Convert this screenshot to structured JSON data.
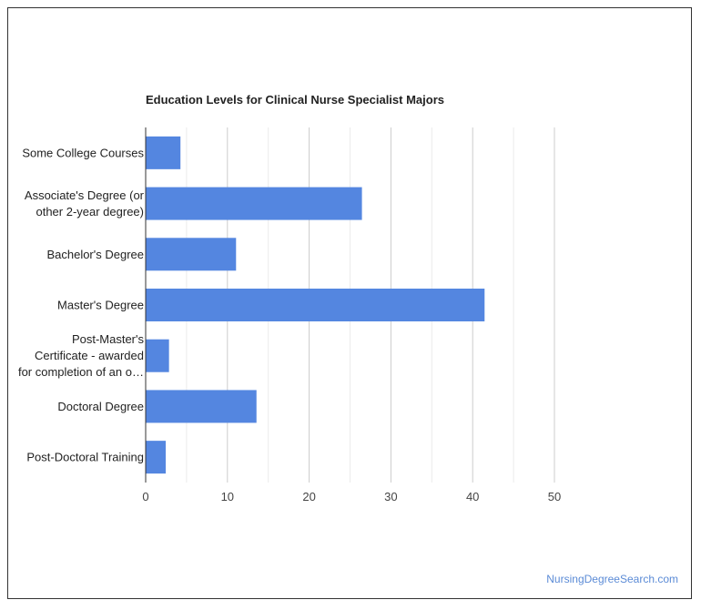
{
  "chart_data": {
    "type": "bar",
    "orientation": "horizontal",
    "title": "Education Levels for Clinical Nurse Specialist Majors",
    "categories": [
      [
        "Some College Courses"
      ],
      [
        "Associate's Degree (or",
        "other 2-year degree)"
      ],
      [
        "Bachelor's Degree"
      ],
      [
        "Master's Degree"
      ],
      [
        "Post-Master's",
        "Certificate - awarded",
        "for completion of an o…"
      ],
      [
        "Doctoral Degree"
      ],
      [
        "Post-Doctoral Training"
      ]
    ],
    "values": [
      4.2,
      26.4,
      11.0,
      41.4,
      2.8,
      13.5,
      2.4
    ],
    "xlim": [
      0,
      50
    ],
    "xticks": [
      0,
      10,
      20,
      30,
      40,
      50
    ],
    "grid": true,
    "bar_color": "#5486e0"
  },
  "watermark": "NursingDegreeSearch.com"
}
